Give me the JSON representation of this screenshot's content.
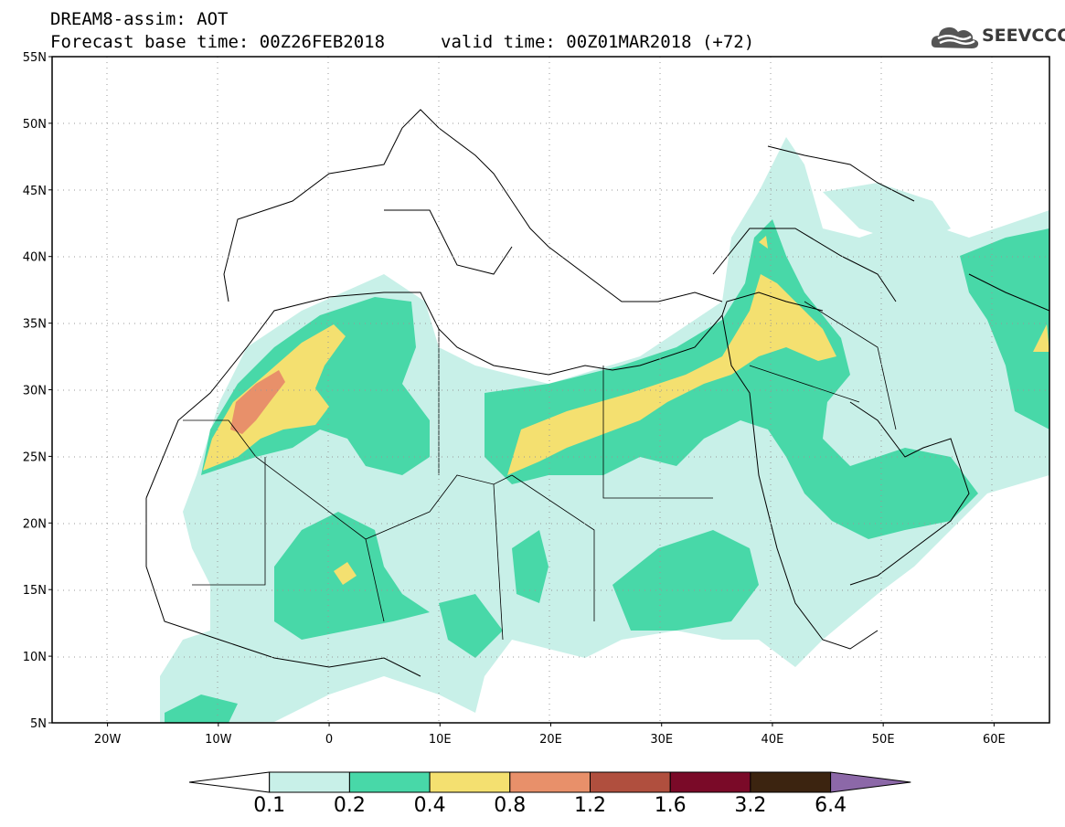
{
  "header": {
    "line1": "DREAM8-assim: AOT",
    "line2": "Forecast base time: 00Z26FEB2018",
    "line3": "valid time: 00Z01MAR2018 (+72)"
  },
  "logo": {
    "text": "SEEVCCC",
    "icon": "cloud-icon"
  },
  "axes": {
    "lon_range": [
      -25,
      65
    ],
    "lat_range": [
      5,
      55
    ],
    "lat_ticks": [
      "55N",
      "50N",
      "45N",
      "40N",
      "35N",
      "30N",
      "25N",
      "20N",
      "15N",
      "10N",
      "5N"
    ],
    "lon_ticks": [
      "20W",
      "10W",
      "0",
      "10E",
      "20E",
      "30E",
      "40E",
      "50E",
      "60E"
    ],
    "grid": "dotted"
  },
  "colorbar": {
    "levels": [
      "0.1",
      "0.2",
      "0.4",
      "0.8",
      "1.2",
      "1.6",
      "3.2",
      "6.4"
    ],
    "colors": [
      "#ffffff",
      "#c8f0e8",
      "#48d8a8",
      "#f4e070",
      "#e8906a",
      "#b04f3e",
      "#7a0a28",
      "#3c2410",
      "#8c68a8"
    ]
  },
  "colors": {
    "aot_0_1": "#c8f0e8",
    "aot_0_2": "#48d8a8",
    "aot_0_4": "#f4e070",
    "aot_0_8": "#e8906a"
  }
}
